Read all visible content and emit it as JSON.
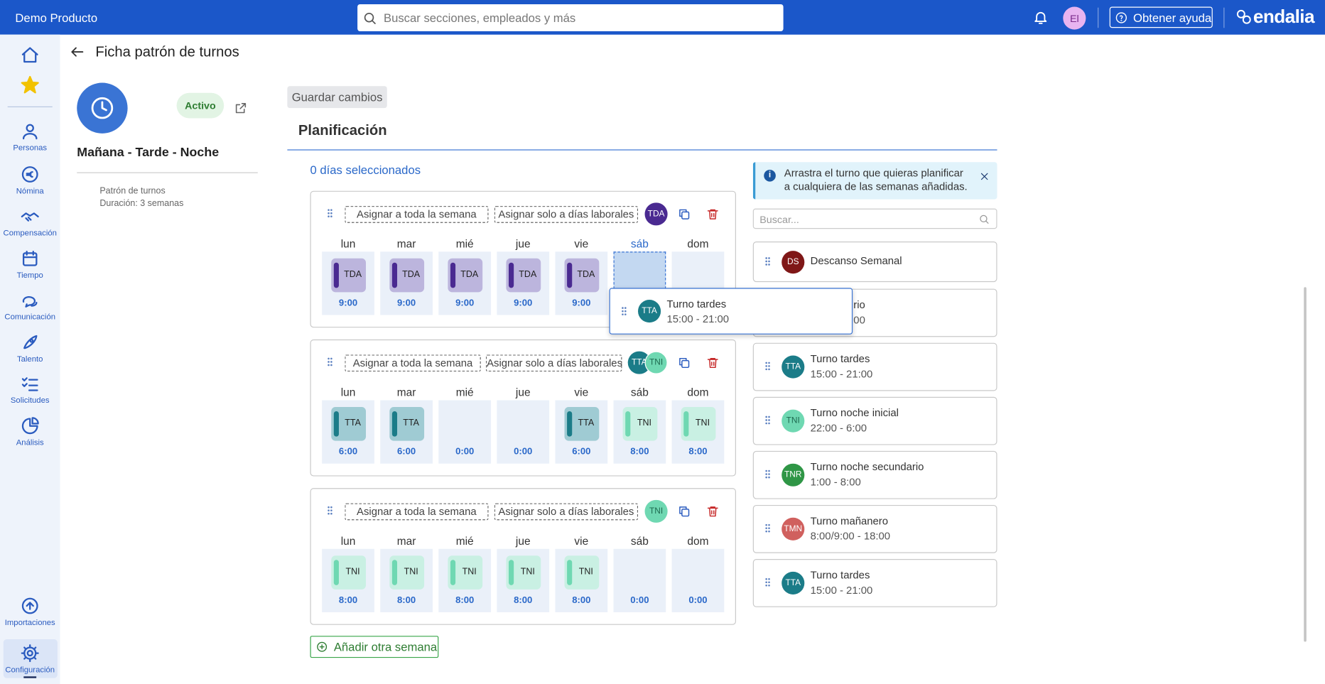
{
  "header": {
    "brand": "Demo Producto",
    "search_placeholder": "Buscar secciones, empleados y más",
    "avatar": "El",
    "help": "Obtener ayuda",
    "logo": "endalia"
  },
  "sidebar": {
    "top": [
      "Personas",
      "Nómina",
      "Compensación",
      "Tiempo",
      "Comunicación",
      "Talento",
      "Solicitudes",
      "Análisis"
    ],
    "bottom": [
      "Importaciones",
      "Configuración"
    ]
  },
  "page": {
    "title": "Ficha patrón de turnos",
    "status": "Activo",
    "name": "Mañana - Tarde - Noche",
    "meta": [
      "Patrón de turnos",
      "Duración: 3 semanas"
    ],
    "save": "Guardar cambios"
  },
  "planning": {
    "title": "Planificación",
    "selected": "0 días seleccionados",
    "add_week": "Añadir otra semana",
    "weeks": [
      {
        "assign_all": "Asignar a toda la semana",
        "assign_work": "Asignar solo a días laborales",
        "badges": [
          "TDA"
        ],
        "days": [
          {
            "day": "lun",
            "code": "TDA",
            "hours": "9:00"
          },
          {
            "day": "mar",
            "code": "TDA",
            "hours": "9:00"
          },
          {
            "day": "mié",
            "code": "TDA",
            "hours": "9:00"
          },
          {
            "day": "jue",
            "code": "TDA",
            "hours": "9:00"
          },
          {
            "day": "vie",
            "code": "TDA",
            "hours": "9:00"
          },
          {
            "day": "sáb"
          },
          {
            "day": "dom"
          }
        ]
      },
      {
        "assign_all": "Asignar a toda la semana",
        "assign_work": "Asignar solo a días laborales",
        "badges": [
          "TTA",
          "TNI"
        ],
        "days": [
          {
            "day": "lun",
            "code": "TTA",
            "hours": "6:00"
          },
          {
            "day": "mar",
            "code": "TTA",
            "hours": "6:00"
          },
          {
            "day": "mié",
            "hours": "0:00"
          },
          {
            "day": "jue",
            "hours": "0:00"
          },
          {
            "day": "vie",
            "code": "TTA",
            "hours": "6:00"
          },
          {
            "day": "sáb",
            "code": "TNI",
            "hours": "8:00"
          },
          {
            "day": "dom",
            "code": "TNI",
            "hours": "8:00"
          }
        ]
      },
      {
        "assign_all": "Asignar a toda la semana",
        "assign_work": "Asignar solo a días laborales",
        "badges": [
          "TNI"
        ],
        "days": [
          {
            "day": "lun",
            "code": "TNI",
            "hours": "8:00"
          },
          {
            "day": "mar",
            "code": "TNI",
            "hours": "8:00"
          },
          {
            "day": "mié",
            "code": "TNI",
            "hours": "8:00"
          },
          {
            "day": "jue",
            "code": "TNI",
            "hours": "8:00"
          },
          {
            "day": "vie",
            "code": "TNI",
            "hours": "8:00"
          },
          {
            "day": "sáb",
            "hours": "0:00"
          },
          {
            "day": "dom",
            "hours": "0:00"
          }
        ]
      }
    ]
  },
  "shifts": {
    "info": "Arrastra el turno que quieras planificar a cualquiera de las semanas añadidas.",
    "search_placeholder": "Buscar...",
    "items": [
      {
        "code": "DS",
        "name": "Descanso Semanal"
      },
      {
        "name": "rio",
        "time": "00"
      },
      {
        "code": "TTA",
        "name": "Turno tardes",
        "time": "15:00 - 21:00"
      },
      {
        "code": "TNI",
        "name": "Turno noche inicial",
        "time": "22:00 - 6:00"
      },
      {
        "code": "TNR",
        "name": "Turno noche secundario",
        "time": "1:00 - 8:00"
      },
      {
        "code": "TMN",
        "name": "Turno mañanero",
        "time": "8:00/9:00 - 18:00"
      },
      {
        "code": "TTA",
        "name": "Turno tardes",
        "time": "15:00 - 21:00"
      }
    ]
  },
  "drag": {
    "code": "TTA",
    "name": "Turno tardes",
    "time": "15:00 - 21:00"
  }
}
